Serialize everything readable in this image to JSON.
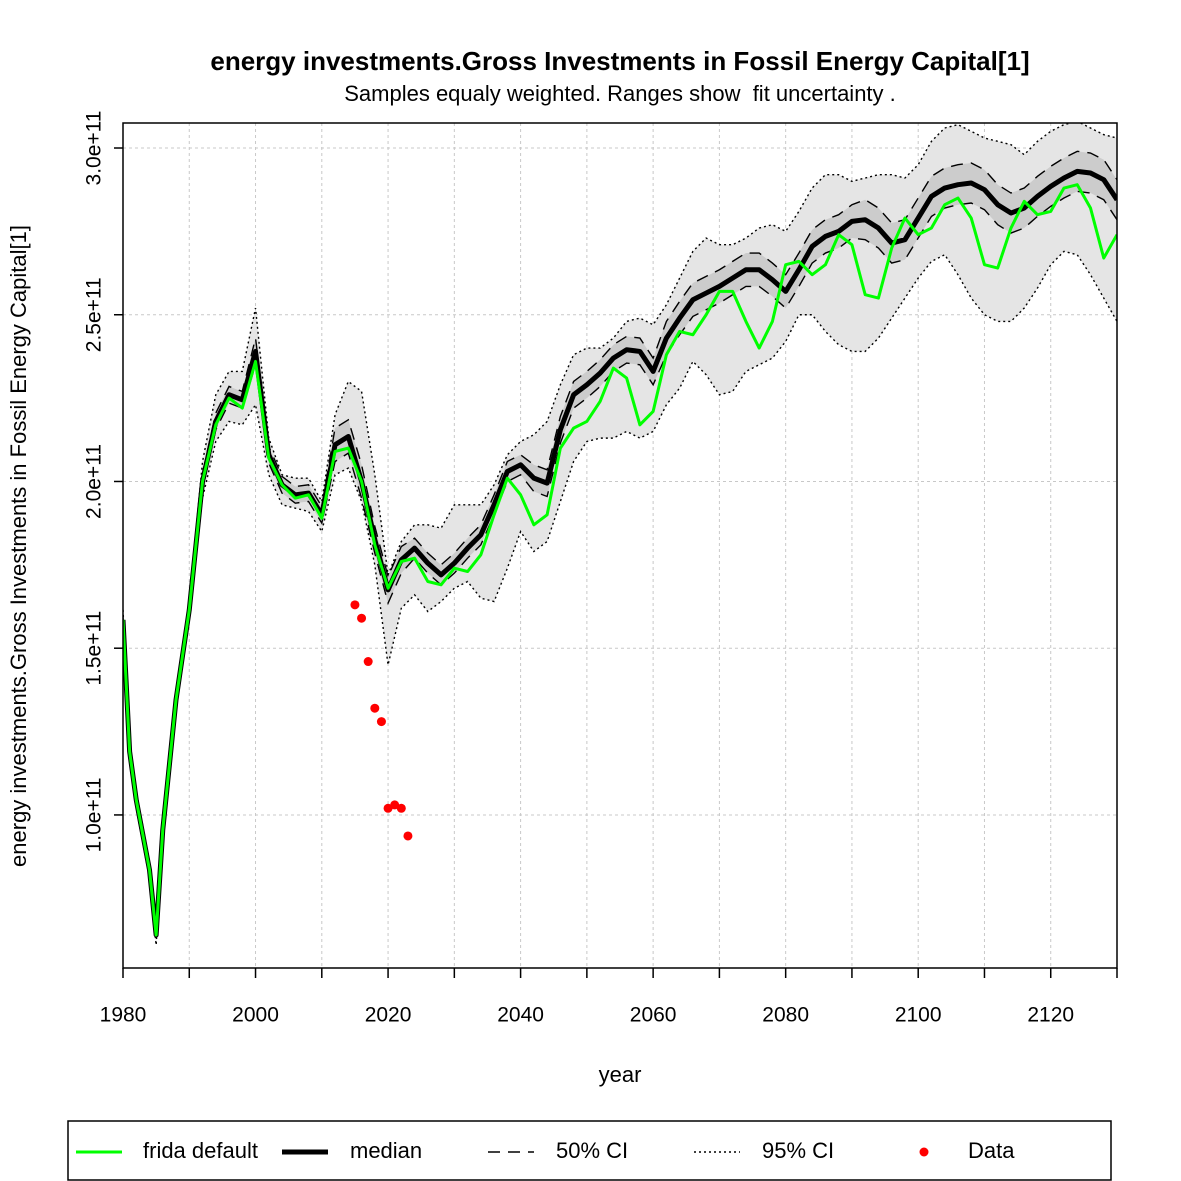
{
  "chart_data": {
    "type": "line",
    "title": "energy investments.Gross Investments in Fossil Energy Capital[1]",
    "subtitle": "Samples equaly weighted. Ranges show  fit uncertainty .",
    "x_label": "year",
    "y_label": "energy investments.Gross Investments in Fossil Energy Capital[1]",
    "xlim": [
      1980,
      2130
    ],
    "ylim": [
      54100000000.0,
      307500000000.0
    ],
    "xticks": [
      1980,
      {
        "value": 1990,
        "label": null
      },
      2000,
      {
        "value": 2010,
        "label": null
      },
      2020,
      {
        "value": 2030,
        "label": null
      },
      2040,
      {
        "value": 2050,
        "label": null
      },
      2060,
      {
        "value": 2070,
        "label": null
      },
      2080,
      {
        "value": 2090,
        "label": null
      },
      2100,
      {
        "value": 2110,
        "label": null
      },
      2120,
      {
        "value": 2130,
        "label": null
      }
    ],
    "yticks": [
      {
        "value": 100000000000.0,
        "label": "1.0e+11"
      },
      {
        "value": 150000000000.0,
        "label": "1.5e+11"
      },
      {
        "value": 200000000000.0,
        "label": "2.0e+11"
      },
      {
        "value": 250000000000.0,
        "label": "2.5e+11"
      },
      {
        "value": 300000000000.0,
        "label": "3.0e+11"
      }
    ],
    "grid": true,
    "legend": "bottom",
    "x": [
      1980,
      1981,
      1982,
      1984,
      1985,
      1986,
      1988,
      1990,
      1992,
      1994,
      1996,
      1998,
      2000,
      2002,
      2004,
      2006,
      2008,
      2010,
      2012,
      2014,
      2016,
      2018,
      2020,
      2022,
      2024,
      2026,
      2028,
      2030,
      2032,
      2034,
      2036,
      2038,
      2040,
      2042,
      2044,
      2046,
      2048,
      2050,
      2052,
      2054,
      2056,
      2058,
      2060,
      2062,
      2064,
      2066,
      2068,
      2070,
      2072,
      2074,
      2076,
      2078,
      2080,
      2082,
      2084,
      2086,
      2088,
      2090,
      2092,
      2094,
      2096,
      2098,
      2100,
      2102,
      2104,
      2106,
      2108,
      2110,
      2112,
      2114,
      2116,
      2118,
      2120,
      2122,
      2124,
      2126,
      2128,
      2130
    ],
    "series": [
      {
        "name": "frida default",
        "color": "#00ff00",
        "style": "line",
        "values": [
          158500000000.0,
          119000000000.0,
          104500000000.0,
          83500000000.0,
          64000000000.0,
          95500000000.0,
          134500000000.0,
          161500000000.0,
          200000000000.0,
          217000000000.0,
          225000000000.0,
          222000000000.0,
          236000000000.0,
          207000000000.0,
          199000000000.0,
          195000000000.0,
          196000000000.0,
          189000000000.0,
          209000000000.0,
          210000000000.0,
          200000000000.0,
          181000000000.0,
          168000000000.0,
          176000000000.0,
          177000000000.0,
          170000000000.0,
          169000000000.0,
          174000000000.0,
          173000000000.0,
          178000000000.0,
          190000000000.0,
          201000000000.0,
          196000000000.0,
          187000000000.0,
          190000000000.0,
          210000000000.0,
          216000000000.0,
          218000000000.0,
          224000000000.0,
          234000000000.0,
          231000000000.0,
          217000000000.0,
          221000000000.0,
          238000000000.0,
          245000000000.0,
          244000000000.0,
          250000000000.0,
          257000000000.0,
          257000000000.0,
          248000000000.0,
          240000000000.0,
          248000000000.0,
          265000000000.0,
          266000000000.0,
          262000000000.0,
          265000000000.0,
          274000000000.0,
          271000000000.0,
          256000000000.0,
          255000000000.0,
          270000000000.0,
          279000000000.0,
          274000000000.0,
          276000000000.0,
          283000000000.0,
          285000000000.0,
          279000000000.0,
          265000000000.0,
          264000000000.0,
          276000000000.0,
          284000000000.0,
          280000000000.0,
          281000000000.0,
          288000000000.0,
          289000000000.0,
          282000000000.0,
          267000000000.0,
          274000000000.0
        ]
      },
      {
        "name": "median",
        "color": "#000000",
        "style": "thick",
        "values": [
          158500000000.0,
          119000000000.0,
          104500000000.0,
          83500000000.0,
          64000000000.0,
          95500000000.0,
          134500000000.0,
          161500000000.0,
          200000000000.0,
          218000000000.0,
          226000000000.0,
          224500000000.0,
          239000000000.0,
          208000000000.0,
          199000000000.0,
          196000000000.0,
          196500000000.0,
          190000000000.0,
          211000000000.0,
          213500000000.0,
          200000000000.0,
          182500000000.0,
          167500000000.0,
          176500000000.0,
          180000000000.0,
          175500000000.0,
          172000000000.0,
          175500000000.0,
          180000000000.0,
          184000000000.0,
          193000000000.0,
          203000000000.0,
          205000000000.0,
          201000000000.0,
          199500000000.0,
          215500000000.0,
          226000000000.0,
          229000000000.0,
          232500000000.0,
          237000000000.0,
          239500000000.0,
          239000000000.0,
          233000000000.0,
          243000000000.0,
          249000000000.0,
          254500000000.0,
          256500000000.0,
          258500000000.0,
          261000000000.0,
          263500000000.0,
          263500000000.0,
          260500000000.0,
          257000000000.0,
          263500000000.0,
          270500000000.0,
          273500000000.0,
          275000000000.0,
          278000000000.0,
          278500000000.0,
          276000000000.0,
          271500000000.0,
          272500000000.0,
          279000000000.0,
          285500000000.0,
          288000000000.0,
          289000000000.0,
          289500000000.0,
          287500000000.0,
          283000000000.0,
          280500000000.0,
          282000000000.0,
          285500000000.0,
          288500000000.0,
          291000000000.0,
          293000000000.0,
          292500000000.0,
          290500000000.0,
          284500000000.0
        ]
      },
      {
        "name": "50% CI",
        "color": "#000000",
        "style": "dashed",
        "fill": "#cccccc",
        "lower": [
          157500000000.0,
          118000000000.0,
          103500000000.0,
          82500000000.0,
          63000000000.0,
          94500000000.0,
          133500000000.0,
          160500000000.0,
          197500000000.0,
          215500000000.0,
          223500000000.0,
          222000000000.0,
          235000000000.0,
          205500000000.0,
          196500000000.0,
          193500000000.0,
          194000000000.0,
          187500000000.0,
          206000000000.0,
          208500000000.0,
          195000000000.0,
          178500000000.0,
          163500000000.0,
          172500000000.0,
          177000000000.0,
          172500000000.0,
          169000000000.0,
          172500000000.0,
          177000000000.0,
          181000000000.0,
          190000000000.0,
          200000000000.0,
          202000000000.0,
          197000000000.0,
          195500000000.0,
          211500000000.0,
          222000000000.0,
          225000000000.0,
          228500000000.0,
          233000000000.0,
          235500000000.0,
          235000000000.0,
          229000000000.0,
          238000000000.0,
          244000000000.0,
          249500000000.0,
          251500000000.0,
          253500000000.0,
          256000000000.0,
          258500000000.0,
          258500000000.0,
          255500000000.0,
          252000000000.0,
          258500000000.0,
          265500000000.0,
          268500000000.0,
          270000000000.0,
          273000000000.0,
          272500000000.0,
          270000000000.0,
          265500000000.0,
          266500000000.0,
          273000000000.0,
          279500000000.0,
          282000000000.0,
          283000000000.0,
          283500000000.0,
          281500000000.0,
          277000000000.0,
          274500000000.0,
          276000000000.0,
          279500000000.0,
          282500000000.0,
          285000000000.0,
          287000000000.0,
          286500000000.0,
          284500000000.0,
          278500000000.0
        ],
        "upper": [
          159500000000.0,
          120000000000.0,
          105500000000.0,
          84500000000.0,
          65000000000.0,
          96500000000.0,
          135500000000.0,
          162500000000.0,
          202500000000.0,
          220500000000.0,
          228500000000.0,
          227000000000.0,
          243000000000.0,
          210500000000.0,
          201500000000.0,
          198500000000.0,
          199000000000.0,
          192500000000.0,
          216000000000.0,
          218500000000.0,
          205000000000.0,
          186500000000.0,
          171500000000.0,
          180500000000.0,
          183000000000.0,
          178500000000.0,
          175000000000.0,
          178500000000.0,
          183000000000.0,
          187000000000.0,
          196000000000.0,
          206000000000.0,
          208000000000.0,
          205000000000.0,
          203500000000.0,
          219500000000.0,
          230000000000.0,
          233000000000.0,
          236500000000.0,
          241000000000.0,
          243500000000.0,
          243000000000.0,
          237000000000.0,
          248000000000.0,
          254000000000.0,
          259500000000.0,
          261500000000.0,
          263500000000.0,
          266000000000.0,
          268500000000.0,
          268500000000.0,
          265500000000.0,
          262000000000.0,
          268500000000.0,
          275500000000.0,
          278500000000.0,
          280000000000.0,
          283000000000.0,
          284500000000.0,
          282000000000.0,
          277500000000.0,
          278500000000.0,
          285000000000.0,
          291500000000.0,
          294000000000.0,
          295000000000.0,
          295500000000.0,
          293500000000.0,
          289000000000.0,
          286500000000.0,
          288000000000.0,
          291500000000.0,
          294500000000.0,
          297000000000.0,
          299000000000.0,
          298500000000.0,
          296500000000.0,
          290500000000.0
        ]
      },
      {
        "name": "95% CI",
        "color": "#000000",
        "style": "dotted",
        "fill": "#e5e5e5",
        "lower": [
          156000000000.0,
          116000000000.0,
          102000000000.0,
          81000000000.0,
          61000000000.0,
          93000000000.0,
          132000000000.0,
          159000000000.0,
          195000000000.0,
          212000000000.0,
          218000000000.0,
          217000000000.0,
          223000000000.0,
          202000000000.0,
          193000000000.0,
          192000000000.0,
          191000000000.0,
          185000000000.0,
          202000000000.0,
          204000000000.0,
          194000000000.0,
          175000000000.0,
          145000000000.0,
          162000000000.0,
          166000000000.0,
          161000000000.0,
          164000000000.0,
          168000000000.0,
          170000000000.0,
          165000000000.0,
          164000000000.0,
          174000000000.0,
          185000000000.0,
          179000000000.0,
          182000000000.0,
          194000000000.0,
          206000000000.0,
          212000000000.0,
          213000000000.0,
          213000000000.0,
          215000000000.0,
          213000000000.0,
          215000000000.0,
          223000000000.0,
          228000000000.0,
          236000000000.0,
          232000000000.0,
          226000000000.0,
          227000000000.0,
          233000000000.0,
          235000000000.0,
          237000000000.0,
          242000000000.0,
          250000000000.0,
          250000000000.0,
          245000000000.0,
          241000000000.0,
          239000000000.0,
          239000000000.0,
          243000000000.0,
          249000000000.0,
          255000000000.0,
          261000000000.0,
          266000000000.0,
          268000000000.0,
          262000000000.0,
          255000000000.0,
          250000000000.0,
          248000000000.0,
          248000000000.0,
          252000000000.0,
          258000000000.0,
          265000000000.0,
          269000000000.0,
          268000000000.0,
          262000000000.0,
          255000000000.0,
          248000000000.0
        ],
        "upper": [
          161500000000.0,
          122000000000.0,
          107000000000.0,
          86000000000.0,
          67000000000.0,
          98000000000.0,
          137000000000.0,
          164000000000.0,
          206000000000.0,
          226000000000.0,
          233000000000.0,
          233000000000.0,
          252000000000.0,
          213000000000.0,
          202000000000.0,
          201000000000.0,
          201000000000.0,
          194000000000.0,
          220000000000.0,
          230000000000.0,
          227000000000.0,
          202000000000.0,
          172000000000.0,
          182000000000.0,
          187000000000.0,
          187000000000.0,
          186000000000.0,
          193000000000.0,
          193000000000.0,
          193000000000.0,
          199000000000.0,
          208000000000.0,
          212000000000.0,
          214000000000.0,
          218000000000.0,
          229000000000.0,
          238000000000.0,
          240000000000.0,
          240000000000.0,
          243000000000.0,
          248000000000.0,
          249000000000.0,
          247000000000.0,
          253000000000.0,
          261000000000.0,
          269000000000.0,
          273000000000.0,
          271000000000.0,
          271000000000.0,
          273000000000.0,
          276000000000.0,
          277000000000.0,
          275000000000.0,
          281000000000.0,
          288000000000.0,
          292000000000.0,
          292000000000.0,
          290000000000.0,
          291000000000.0,
          292000000000.0,
          292000000000.0,
          291000000000.0,
          295000000000.0,
          302000000000.0,
          306000000000.0,
          307000000000.0,
          305000000000.0,
          303000000000.0,
          302000000000.0,
          301000000000.0,
          298000000000.0,
          302000000000.0,
          305000000000.0,
          307000000000.0,
          308000000000.0,
          306000000000.0,
          304000000000.0,
          303000000000.0
        ]
      },
      {
        "name": "Data",
        "color": "#ff0000",
        "style": "points",
        "x": [
          2015,
          2016,
          2017,
          2018,
          2019,
          2020,
          2021,
          2022,
          2023
        ],
        "values": [
          163000000000.0,
          159000000000.0,
          146000000000.0,
          132000000000.0,
          128000000000.0,
          102000000000.0,
          103000000000.0,
          102000000000.0,
          93700000000.0
        ]
      }
    ]
  }
}
